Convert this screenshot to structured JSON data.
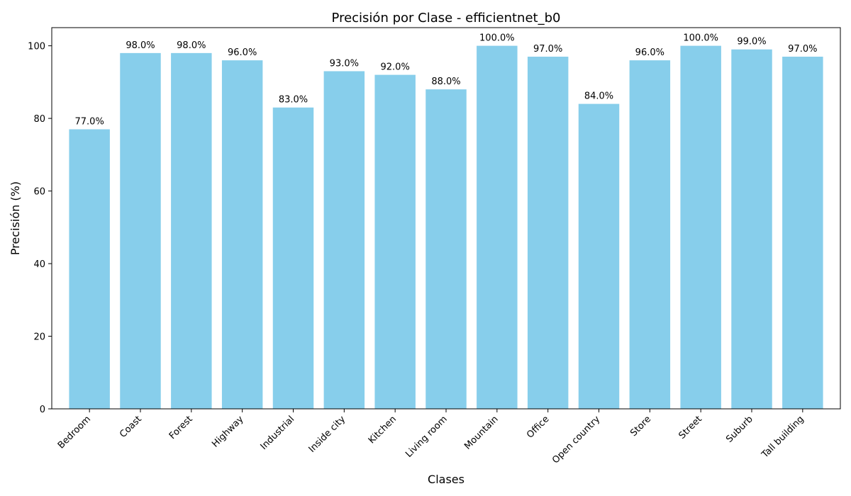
{
  "chart_data": {
    "type": "bar",
    "title": "Precisión por Clase - efficientnet_b0",
    "xlabel": "Clases",
    "ylabel": "Precisión (%)",
    "categories": [
      "Bedroom",
      "Coast",
      "Forest",
      "Highway",
      "Industrial",
      "Inside city",
      "Kitchen",
      "Living room",
      "Mountain",
      "Office",
      "Open country",
      "Store",
      "Street",
      "Suburb",
      "Tall building"
    ],
    "values": [
      77.0,
      98.0,
      98.0,
      96.0,
      83.0,
      93.0,
      92.0,
      88.0,
      100.0,
      97.0,
      84.0,
      96.0,
      100.0,
      99.0,
      97.0
    ],
    "value_labels": [
      "77.0%",
      "98.0%",
      "98.0%",
      "96.0%",
      "83.0%",
      "93.0%",
      "92.0%",
      "88.0%",
      "100.0%",
      "97.0%",
      "84.0%",
      "96.0%",
      "100.0%",
      "99.0%",
      "97.0%"
    ],
    "ylim": [
      0,
      105
    ],
    "yticks": [
      0,
      20,
      40,
      60,
      80,
      100
    ],
    "ytick_labels": [
      "0",
      "20",
      "40",
      "60",
      "80",
      "100"
    ],
    "grid": false,
    "bar_color": "#87ceeb"
  }
}
